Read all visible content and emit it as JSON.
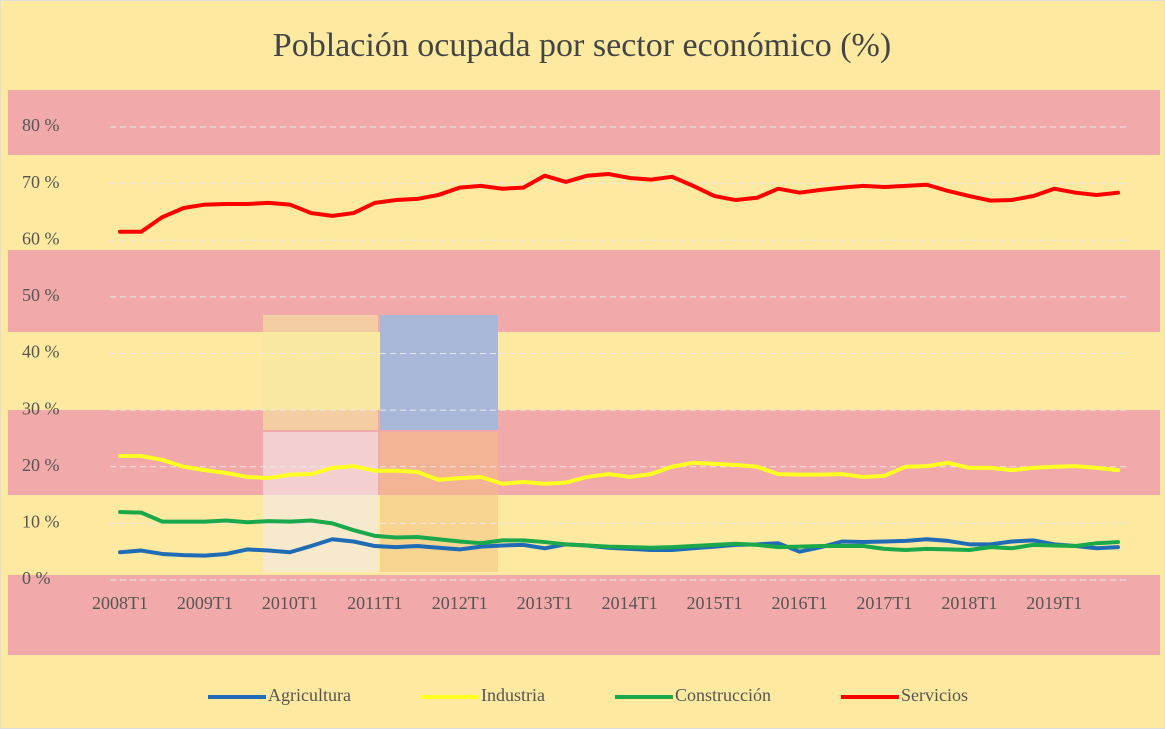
{
  "chart_data": {
    "type": "line",
    "title": "Población ocupada por sector económico (%)",
    "categories": [
      "2008T1",
      null,
      null,
      null,
      "2009T1",
      null,
      null,
      null,
      "2010T1",
      null,
      null,
      null,
      "2011T1",
      null,
      null,
      null,
      "2012T1",
      null,
      null,
      null,
      "2013T1",
      null,
      null,
      null,
      "2014T1",
      null,
      null,
      null,
      "2015T1",
      null,
      null,
      null,
      "2016T1",
      null,
      null,
      null,
      "2017T1",
      null,
      null,
      null,
      "2018T1",
      null,
      null,
      null,
      "2019T1",
      null,
      null,
      null
    ],
    "series": [
      {
        "name": "Agricultura",
        "color": "#1f6bb5",
        "values": [
          4.9,
          5.2,
          4.6,
          4.4,
          4.3,
          4.6,
          5.4,
          5.2,
          4.9,
          6.0,
          7.2,
          6.8,
          6.0,
          5.8,
          6.0,
          5.7,
          5.4,
          5.9,
          6.1,
          6.2,
          5.6,
          6.3,
          6.1,
          5.7,
          5.5,
          5.3,
          5.3,
          5.6,
          5.9,
          6.2,
          6.3,
          6.5,
          5.0,
          5.8,
          6.8,
          6.7,
          6.8,
          6.9,
          7.2,
          6.9,
          6.3,
          6.3,
          6.8,
          7.0,
          6.3,
          6.0,
          5.6,
          5.8
        ]
      },
      {
        "name": "Industria",
        "color": "#ffff22",
        "values": [
          21.9,
          21.9,
          21.2,
          20.0,
          19.4,
          18.9,
          18.2,
          18.0,
          18.6,
          18.7,
          19.8,
          20.1,
          19.3,
          19.3,
          19.1,
          17.7,
          18.0,
          18.2,
          17.0,
          17.3,
          17.0,
          17.2,
          18.2,
          18.7,
          18.2,
          18.7,
          20.0,
          20.7,
          20.5,
          20.3,
          20.0,
          18.7,
          18.6,
          18.6,
          18.7,
          18.2,
          18.4,
          20.0,
          20.1,
          20.7,
          19.8,
          19.8,
          19.4,
          19.8,
          20.0,
          20.1,
          19.8,
          19.4
        ]
      },
      {
        "name": "Construcción",
        "color": "#1aa84a",
        "values": [
          12.0,
          11.9,
          10.3,
          10.3,
          10.3,
          10.5,
          10.2,
          10.4,
          10.3,
          10.5,
          10.0,
          8.8,
          7.8,
          7.5,
          7.6,
          7.2,
          6.8,
          6.5,
          7.0,
          7.0,
          6.7,
          6.3,
          6.1,
          5.9,
          5.8,
          5.7,
          5.8,
          6.0,
          6.2,
          6.4,
          6.2,
          5.8,
          5.9,
          6.0,
          6.0,
          6.0,
          5.5,
          5.3,
          5.5,
          5.4,
          5.3,
          5.8,
          5.6,
          6.2,
          6.1,
          6.0,
          6.5,
          6.7
        ]
      },
      {
        "name": "Servicios",
        "color": "#ff0000",
        "values": [
          61.5,
          61.5,
          64.1,
          65.7,
          66.3,
          66.4,
          66.4,
          66.6,
          66.3,
          64.8,
          64.3,
          64.8,
          66.6,
          67.1,
          67.3,
          68.0,
          69.3,
          69.6,
          69.1,
          69.3,
          71.4,
          70.3,
          71.4,
          71.7,
          71.0,
          70.7,
          71.2,
          69.6,
          67.8,
          67.1,
          67.5,
          69.1,
          68.4,
          68.9,
          69.3,
          69.6,
          69.4,
          69.6,
          69.8,
          68.7,
          67.8,
          67.0,
          67.1,
          67.8,
          69.1,
          68.4,
          68.0,
          68.4
        ]
      }
    ],
    "ylim": [
      0,
      80
    ],
    "yticks": [
      {
        "value": 0,
        "label": "0 %"
      },
      {
        "value": 10,
        "label": "10 %"
      },
      {
        "value": 20,
        "label": "20 %"
      },
      {
        "value": 30,
        "label": "30 %"
      },
      {
        "value": 40,
        "label": "40 %"
      },
      {
        "value": 50,
        "label": "50 %"
      },
      {
        "value": 60,
        "label": "60 %"
      },
      {
        "value": 70,
        "label": "70 %"
      },
      {
        "value": 80,
        "label": "80 %"
      }
    ],
    "grid": true,
    "legend": "bottom"
  }
}
